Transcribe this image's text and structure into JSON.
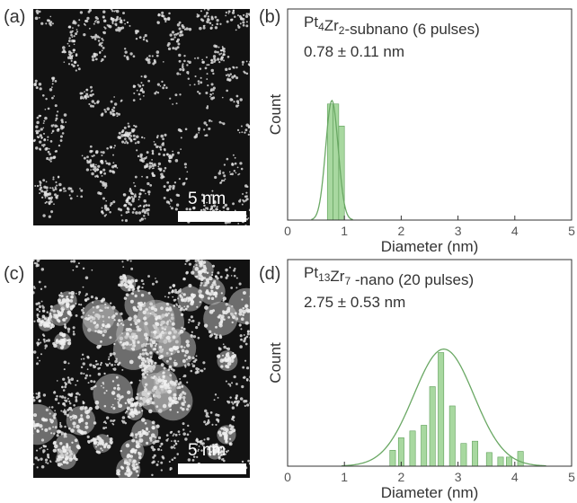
{
  "panels": {
    "a": {
      "label": "(a)",
      "scale_label": "5 nm"
    },
    "b": {
      "label": "(b)"
    },
    "c": {
      "label": "(c)",
      "scale_label": "5 nm"
    },
    "d": {
      "label": "(d)"
    }
  },
  "chart_data": [
    {
      "type": "bar",
      "panel": "b",
      "title_main": "Pt",
      "title_sub1": "4",
      "title_mid": "Zr",
      "title_sub2": "2",
      "title_tail": "-subnano (6 pulses)",
      "annotation": "0.78 ± 0.11 nm",
      "xlabel": "Diameter (nm)",
      "ylabel": "Count",
      "xlim": [
        0,
        5
      ],
      "xticks": [
        "0",
        "1",
        "2",
        "3",
        "4",
        "5"
      ],
      "bin_width": 0.1,
      "bars": [
        {
          "x": 0.75,
          "count": 1.0
        },
        {
          "x": 0.85,
          "count": 1.0
        },
        {
          "x": 0.95,
          "count": 0.81
        }
      ],
      "fit": {
        "type": "gaussian",
        "mean": 0.78,
        "sigma": 0.11
      }
    },
    {
      "type": "bar",
      "panel": "d",
      "title_main": "Pt",
      "title_sub1": "13",
      "title_mid": "Zr",
      "title_sub2": "7",
      "title_tail": " -nano (20 pulses)",
      "annotation": "2.75 ± 0.53 nm",
      "xlabel": "Diameter (nm)",
      "ylabel": "Count",
      "xlim": [
        0,
        5
      ],
      "xticks": [
        "0",
        "1",
        "2",
        "3",
        "4",
        "5"
      ],
      "bin_width": 0.1,
      "bars": [
        {
          "x": 1.85,
          "count": 0.14
        },
        {
          "x": 2.0,
          "count": 0.25
        },
        {
          "x": 2.2,
          "count": 0.31
        },
        {
          "x": 2.4,
          "count": 0.36
        },
        {
          "x": 2.55,
          "count": 0.7
        },
        {
          "x": 2.7,
          "count": 1.0
        },
        {
          "x": 2.9,
          "count": 0.53
        },
        {
          "x": 3.1,
          "count": 0.2
        },
        {
          "x": 3.3,
          "count": 0.22
        },
        {
          "x": 3.55,
          "count": 0.12
        },
        {
          "x": 3.75,
          "count": 0.08
        },
        {
          "x": 3.9,
          "count": 0.08
        },
        {
          "x": 4.1,
          "count": 0.13
        }
      ],
      "fit": {
        "type": "gaussian",
        "mean": 2.75,
        "sigma": 0.53
      }
    }
  ]
}
